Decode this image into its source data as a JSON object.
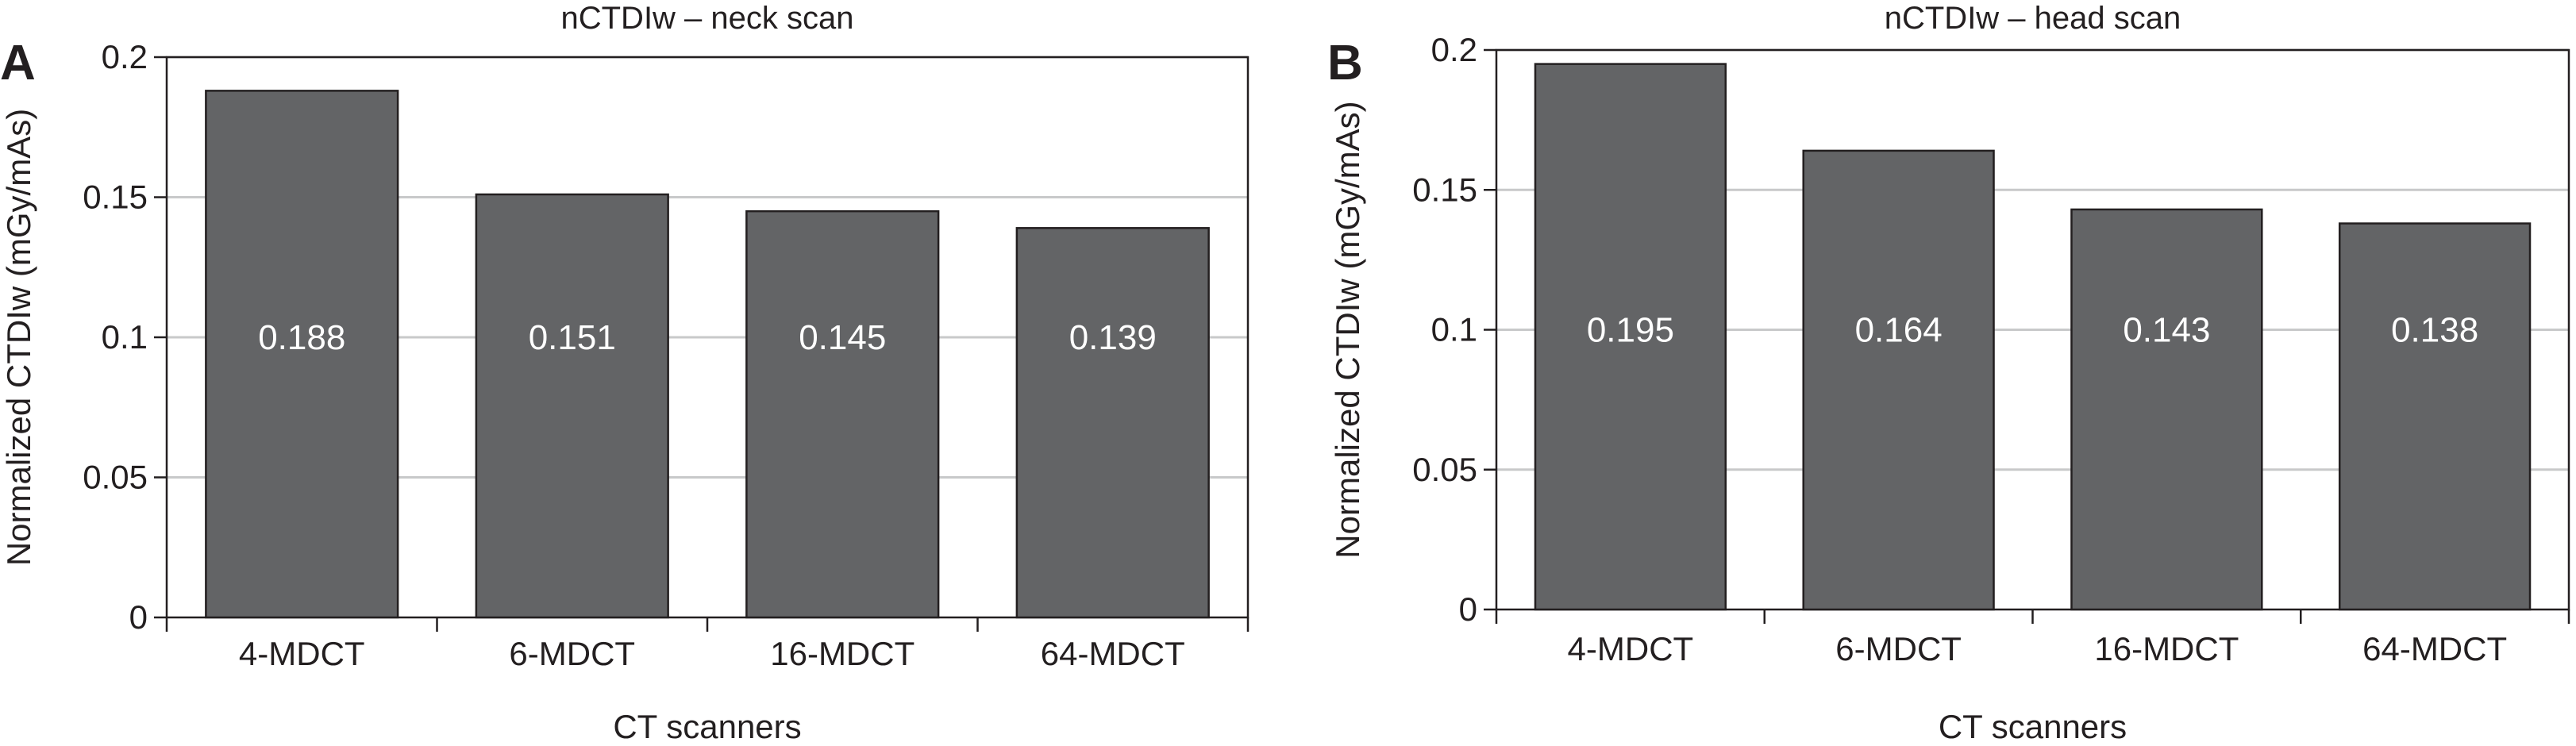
{
  "chart_data": [
    {
      "panel": "A",
      "type": "bar",
      "title": "nCTDIw – neck scan",
      "xlabel": "CT scanners",
      "ylabel": "Normalized CTDIw (mGy/mAs)",
      "categories": [
        "4-MDCT",
        "6-MDCT",
        "16-MDCT",
        "64-MDCT"
      ],
      "values": [
        0.188,
        0.151,
        0.145,
        0.139
      ],
      "value_labels": [
        "0.188",
        "0.151",
        "0.145",
        "0.139"
      ],
      "ylim": [
        0,
        0.2
      ],
      "yticks": [
        0,
        0.05,
        0.1,
        0.15,
        0.2
      ],
      "ytick_labels": [
        "0",
        "0.05",
        "0.1",
        "0.15",
        "0.2"
      ],
      "grid": true,
      "bar_color": "#636466"
    },
    {
      "panel": "B",
      "type": "bar",
      "title": "nCTDIw – head scan",
      "xlabel": "CT scanners",
      "ylabel": "Normalized CTDIw (mGy/mAs)",
      "categories": [
        "4-MDCT",
        "6-MDCT",
        "16-MDCT",
        "64-MDCT"
      ],
      "values": [
        0.195,
        0.164,
        0.143,
        0.138
      ],
      "value_labels": [
        "0.195",
        "0.164",
        "0.143",
        "0.138"
      ],
      "ylim": [
        0,
        0.2
      ],
      "yticks": [
        0,
        0.05,
        0.1,
        0.15,
        0.2
      ],
      "ytick_labels": [
        "0",
        "0.05",
        "0.1",
        "0.15",
        "0.2"
      ],
      "grid": true,
      "bar_color": "#636466"
    }
  ]
}
